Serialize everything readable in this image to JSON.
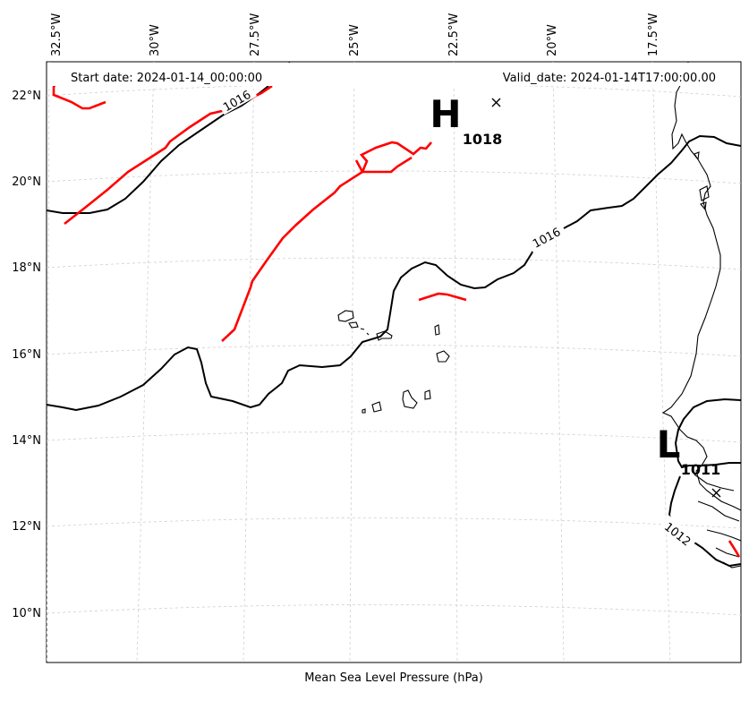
{
  "map": {
    "header_start": "Start date: 2024-01-14_00:00:00",
    "header_valid": "Valid_date: 2024-01-14T17:00:00.00",
    "xlabel": "Mean Sea Level Pressure (hPa)",
    "lon_ticks": [
      "32.5°W",
      "30°W",
      "27.5°W",
      "25°W",
      "22.5°W",
      "20°W",
      "17.5°W"
    ],
    "lat_ticks": [
      "22°N",
      "20°N",
      "18°N",
      "16°N",
      "14°N",
      "12°N",
      "10°N"
    ],
    "high": {
      "letter": "H",
      "value": "1018"
    },
    "low": {
      "letter": "L",
      "value": "1011"
    },
    "isobar_labels": [
      "1016",
      "1016",
      "1012"
    ],
    "colors": {
      "isobar": "#000000",
      "front": "#ff0000",
      "coast": "#000000",
      "grid": "#cfcfcf"
    }
  }
}
